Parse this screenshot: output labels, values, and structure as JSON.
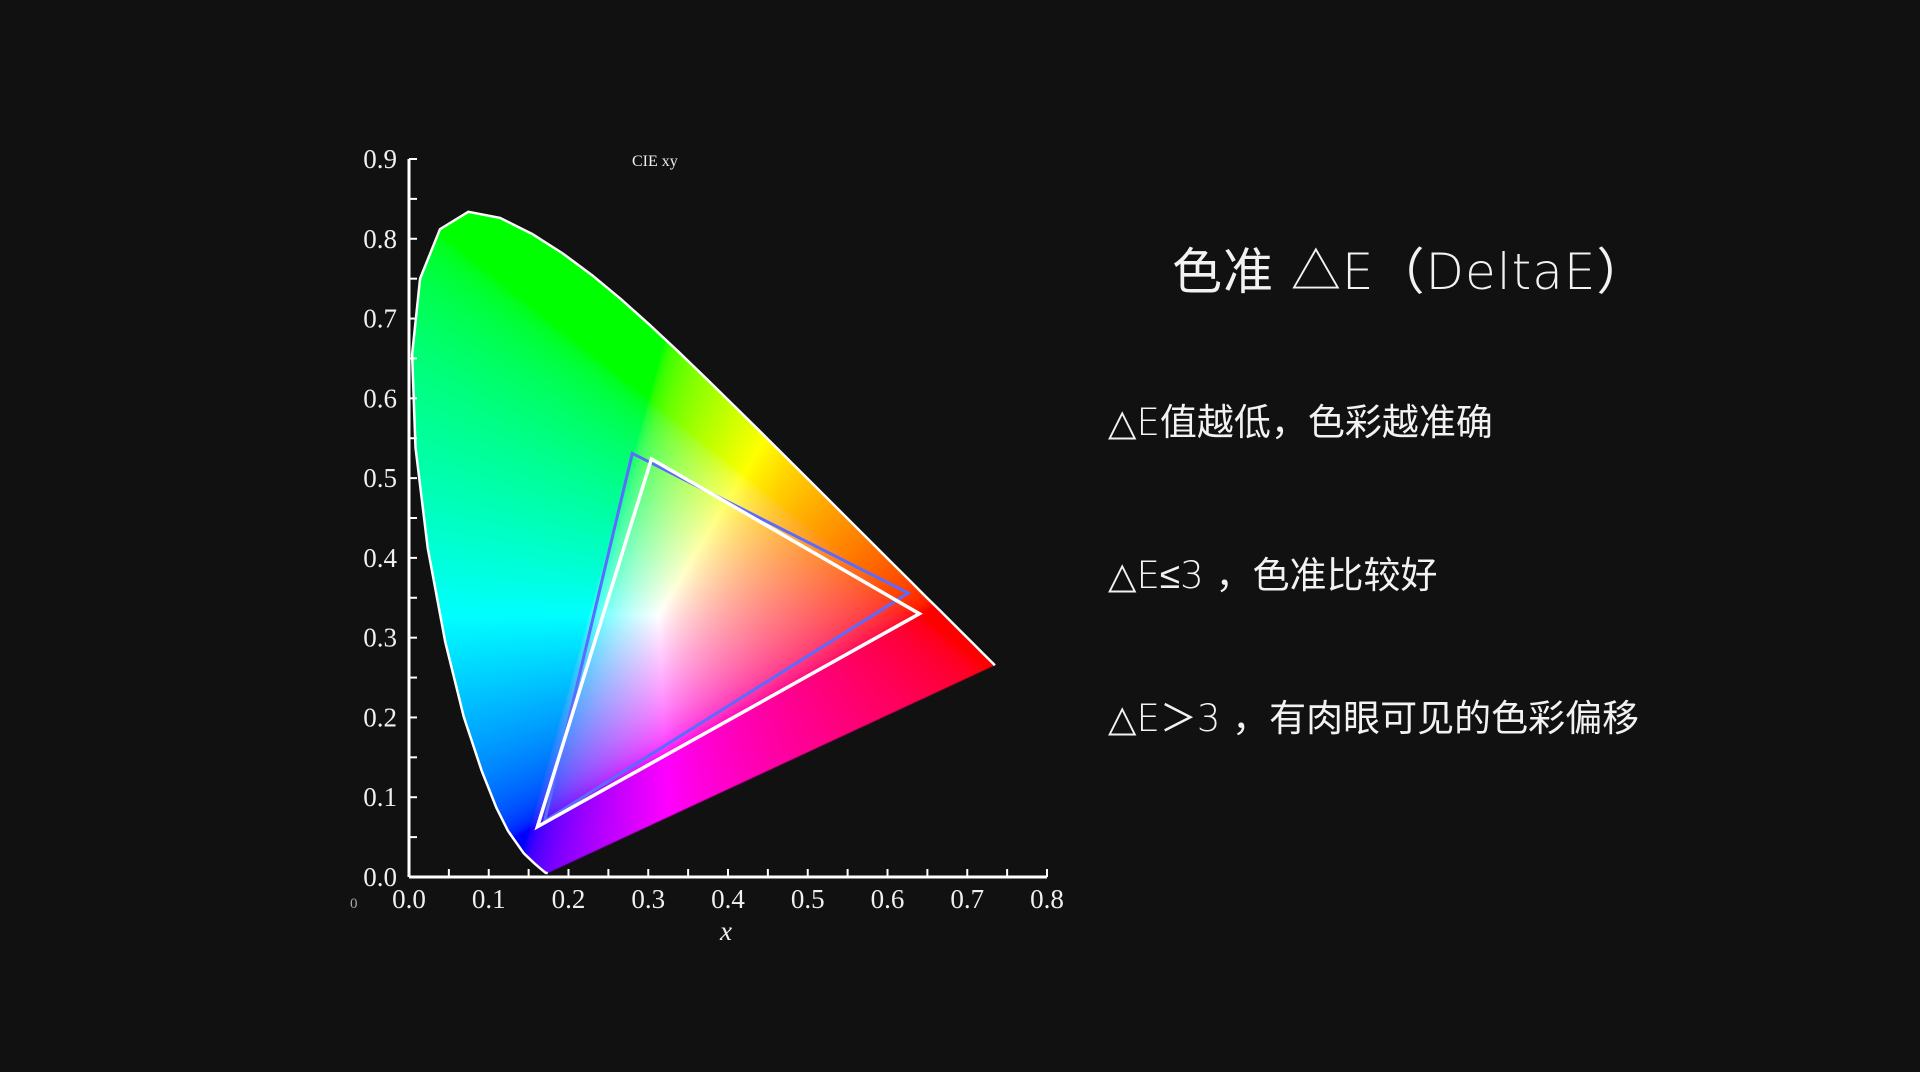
{
  "slide": {
    "title": "色准   △E（DeltaE）",
    "lines": [
      "△E值越低，色彩越准确",
      "△E≤3 ，色准比较好",
      "△E＞3 ，有肉眼可见的色彩偏移"
    ]
  },
  "chart_data": {
    "type": "scatter",
    "title": "CIE xy",
    "xlabel": "x",
    "ylabel": "",
    "origin_label": "0",
    "xlim": [
      0,
      0.8
    ],
    "ylim": [
      0,
      0.9
    ],
    "xticks": [
      "0.0",
      "0.1",
      "0.2",
      "0.3",
      "0.4",
      "0.5",
      "0.6",
      "0.7",
      "0.8"
    ],
    "yticks": [
      "0.0",
      "0.1",
      "0.2",
      "0.3",
      "0.4",
      "0.5",
      "0.6",
      "0.7",
      "0.8",
      "0.9"
    ],
    "grid": false,
    "spectral_locus": [
      [
        0.1741,
        0.005
      ],
      [
        0.1714,
        0.0051
      ],
      [
        0.1644,
        0.0109
      ],
      [
        0.1566,
        0.0177
      ],
      [
        0.144,
        0.0297
      ],
      [
        0.1241,
        0.0578
      ],
      [
        0.1096,
        0.0868
      ],
      [
        0.0913,
        0.1327
      ],
      [
        0.0687,
        0.2007
      ],
      [
        0.0454,
        0.295
      ],
      [
        0.0235,
        0.4127
      ],
      [
        0.0082,
        0.5384
      ],
      [
        0.0039,
        0.6548
      ],
      [
        0.0139,
        0.7502
      ],
      [
        0.0389,
        0.812
      ],
      [
        0.0743,
        0.8338
      ],
      [
        0.1142,
        0.8262
      ],
      [
        0.1547,
        0.8059
      ],
      [
        0.1929,
        0.7816
      ],
      [
        0.2296,
        0.7543
      ],
      [
        0.2658,
        0.7243
      ],
      [
        0.3016,
        0.6923
      ],
      [
        0.3373,
        0.6589
      ],
      [
        0.3731,
        0.6245
      ],
      [
        0.4087,
        0.5896
      ],
      [
        0.4441,
        0.5547
      ],
      [
        0.4788,
        0.5202
      ],
      [
        0.5125,
        0.4866
      ],
      [
        0.5448,
        0.4544
      ],
      [
        0.5752,
        0.4242
      ],
      [
        0.6029,
        0.3965
      ],
      [
        0.627,
        0.3725
      ],
      [
        0.6482,
        0.3514
      ],
      [
        0.6658,
        0.334
      ],
      [
        0.6915,
        0.3083
      ],
      [
        0.7079,
        0.292
      ],
      [
        0.719,
        0.2809
      ],
      [
        0.7347,
        0.2653
      ]
    ],
    "series": [
      {
        "color": "#5a6cff",
        "points": [
          [
            0.28,
            0.531
          ],
          [
            0.626,
            0.356
          ],
          [
            0.17,
            0.07
          ]
        ]
      },
      {
        "color": "#ffffff",
        "points": [
          [
            0.304,
            0.524
          ],
          [
            0.64,
            0.33
          ],
          [
            0.161,
            0.063
          ]
        ]
      }
    ],
    "colors": {
      "background": "#111111",
      "axis": "#ffffff",
      "locus_outline": "#ffffff"
    }
  }
}
